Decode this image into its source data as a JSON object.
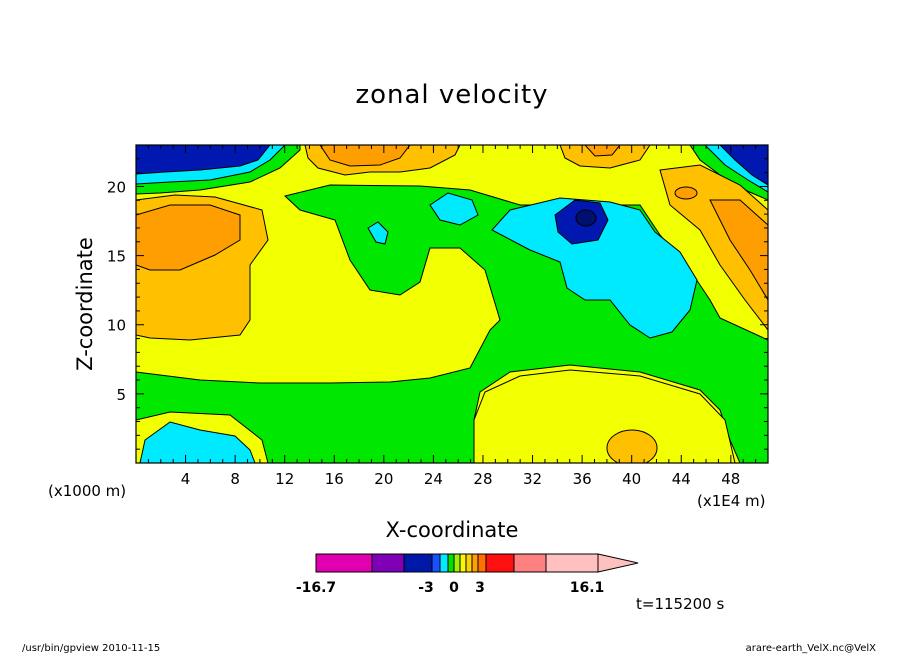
{
  "chart_data": {
    "type": "heatmap",
    "title": "zonal velocity",
    "xlabel": "X-coordinate",
    "ylabel": "Z-coordinate",
    "x_unit_left": "(x1000 m)",
    "x_unit_right": "(x1E4 m)",
    "xlim": [
      0,
      51
    ],
    "ylim": [
      0,
      23
    ],
    "x_ticks": [
      "4",
      "8",
      "12",
      "16",
      "20",
      "24",
      "28",
      "32",
      "36",
      "40",
      "44",
      "48"
    ],
    "y_ticks": [
      "5",
      "10",
      "15",
      "20"
    ],
    "x_tick_values": [
      4,
      8,
      12,
      16,
      20,
      24,
      28,
      32,
      36,
      40,
      44,
      48
    ],
    "y_tick_values": [
      5,
      10,
      15,
      20
    ],
    "time_label": "t=115200 s",
    "colorbar": {
      "min_label": "-16.7",
      "max_label": "16.1",
      "tick_labels": [
        "-3",
        "0",
        "3"
      ],
      "colors": [
        "#e000b0",
        "#8000b8",
        "#0018a8",
        "#1850ff",
        "#00e8ff",
        "#00e000",
        "#a0f000",
        "#f8f800",
        "#ffd000",
        "#ffa000",
        "#ff7000",
        "#ff1010",
        "#ff8080",
        "#ffc0c0"
      ]
    },
    "regions": [
      {
        "name": "yellow",
        "color": "#f2ff00",
        "value": "0 to 3"
      },
      {
        "name": "green",
        "color": "#00e800",
        "value": "-3 to 0"
      },
      {
        "name": "cyan",
        "color": "#00eaff",
        "value": "about -6"
      },
      {
        "name": "orange",
        "color": "#ffc000",
        "value": "about 3 to 6"
      },
      {
        "name": "dark-orange",
        "color": "#ff9e00",
        "value": "about 6 to 9"
      },
      {
        "name": "blue",
        "color": "#0018b0",
        "value": "about -12"
      }
    ]
  },
  "footer": {
    "left": "/usr/bin/gpview  2010-11-15",
    "right": "arare-earth_VelX.nc@VelX"
  }
}
